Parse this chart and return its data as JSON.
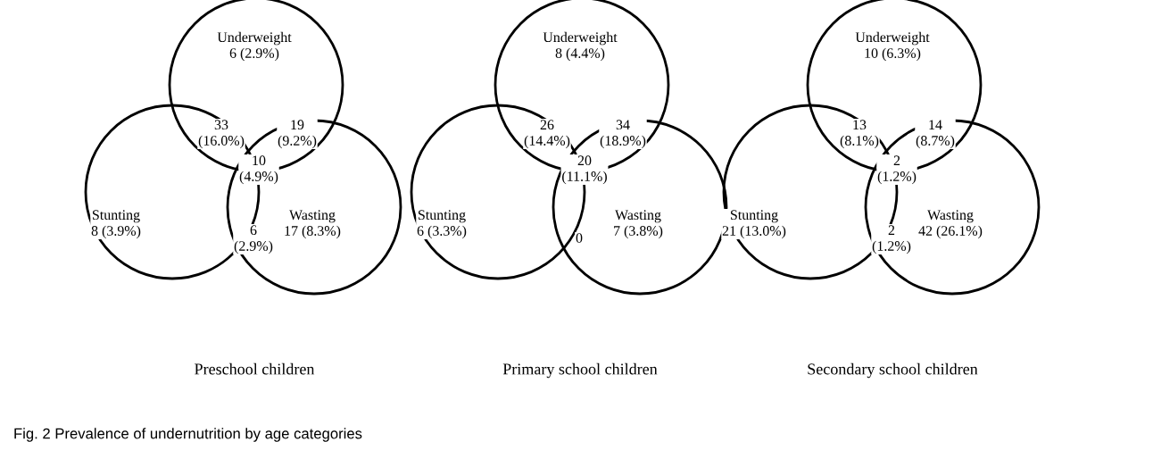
{
  "chart_data": [
    {
      "type": "other",
      "title": "Preschool children",
      "categories": [
        "Underweight",
        null,
        null,
        null,
        "Stunting",
        null,
        "Wasting"
      ],
      "values": [
        6,
        33,
        19,
        10,
        8,
        6,
        17
      ],
      "value_labels": [
        "6 (2.9%)",
        "33\n(16.0%)",
        "19\n(9.2%)",
        "10\n(4.9%)",
        "8 (3.9%)",
        "6\n(2.9%)",
        "17 (8.3%)"
      ],
      "annotations": [
        "Fig. 2 Prevalence of undernutrition by age categories"
      ]
    },
    {
      "type": "other",
      "title": "Primary school children",
      "categories": [
        "Underweight",
        null,
        null,
        null,
        "Stunting",
        null,
        "Wasting"
      ],
      "values": [
        8,
        26,
        34,
        20,
        6,
        0,
        7
      ],
      "value_labels": [
        "8 (4.4%)",
        "26\n(14.4%)",
        "34\n(18.9%)",
        "20\n(11.1%)",
        "6 (3.3%)",
        "0",
        "7 (3.8%)"
      ]
    },
    {
      "type": "other",
      "title": "Secondary school children",
      "categories": [
        "Underweight",
        null,
        null,
        null,
        "Stunting",
        null,
        "Wasting"
      ],
      "values": [
        10,
        13,
        14,
        2,
        21,
        2,
        42
      ],
      "value_labels": [
        "10 (6.3%)",
        "13\n(8.1%)",
        "14\n(8.7%)",
        "2\n(1.2%)",
        "21 (13.0%)",
        "2\n(1.2%)",
        "42 (26.1%)"
      ]
    }
  ]
}
